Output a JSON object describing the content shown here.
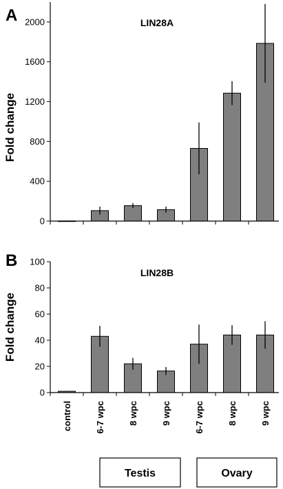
{
  "groups": [
    {
      "label": "Testis"
    },
    {
      "label": "Ovary"
    }
  ],
  "colors": {
    "bar": "#7f7f7f",
    "axis": "#000000",
    "error_bar": "#000000"
  },
  "chart_data": [
    {
      "type": "bar",
      "panel": "A",
      "title": "LIN28A",
      "ylabel": "Fold change",
      "xlabel": "",
      "categories": [
        "control",
        "6-7 wpc",
        "8 wpc",
        "9 wpc",
        "6-7 wpc",
        "8 wpc",
        "9 wpc"
      ],
      "values": [
        1,
        105,
        155,
        115,
        730,
        1285,
        1785
      ],
      "errors": [
        0,
        40,
        25,
        30,
        260,
        120,
        395
      ],
      "ylim": [
        0,
        2200
      ],
      "yticks": [
        0,
        400,
        800,
        1200,
        1600,
        2000
      ],
      "grid": false
    },
    {
      "type": "bar",
      "panel": "B",
      "title": "LIN28B",
      "ylabel": "Fold change",
      "xlabel": "",
      "categories": [
        "control",
        "6-7 wpc",
        "8 wpc",
        "9 wpc",
        "6-7 wpc",
        "8 wpc",
        "9 wpc"
      ],
      "values": [
        1,
        43,
        22,
        16.5,
        37,
        44,
        44
      ],
      "errors": [
        0,
        8,
        4.5,
        3,
        15,
        7.5,
        10.5
      ],
      "ylim": [
        0,
        100
      ],
      "yticks": [
        0,
        20,
        40,
        60,
        80,
        100
      ],
      "grid": false
    }
  ]
}
